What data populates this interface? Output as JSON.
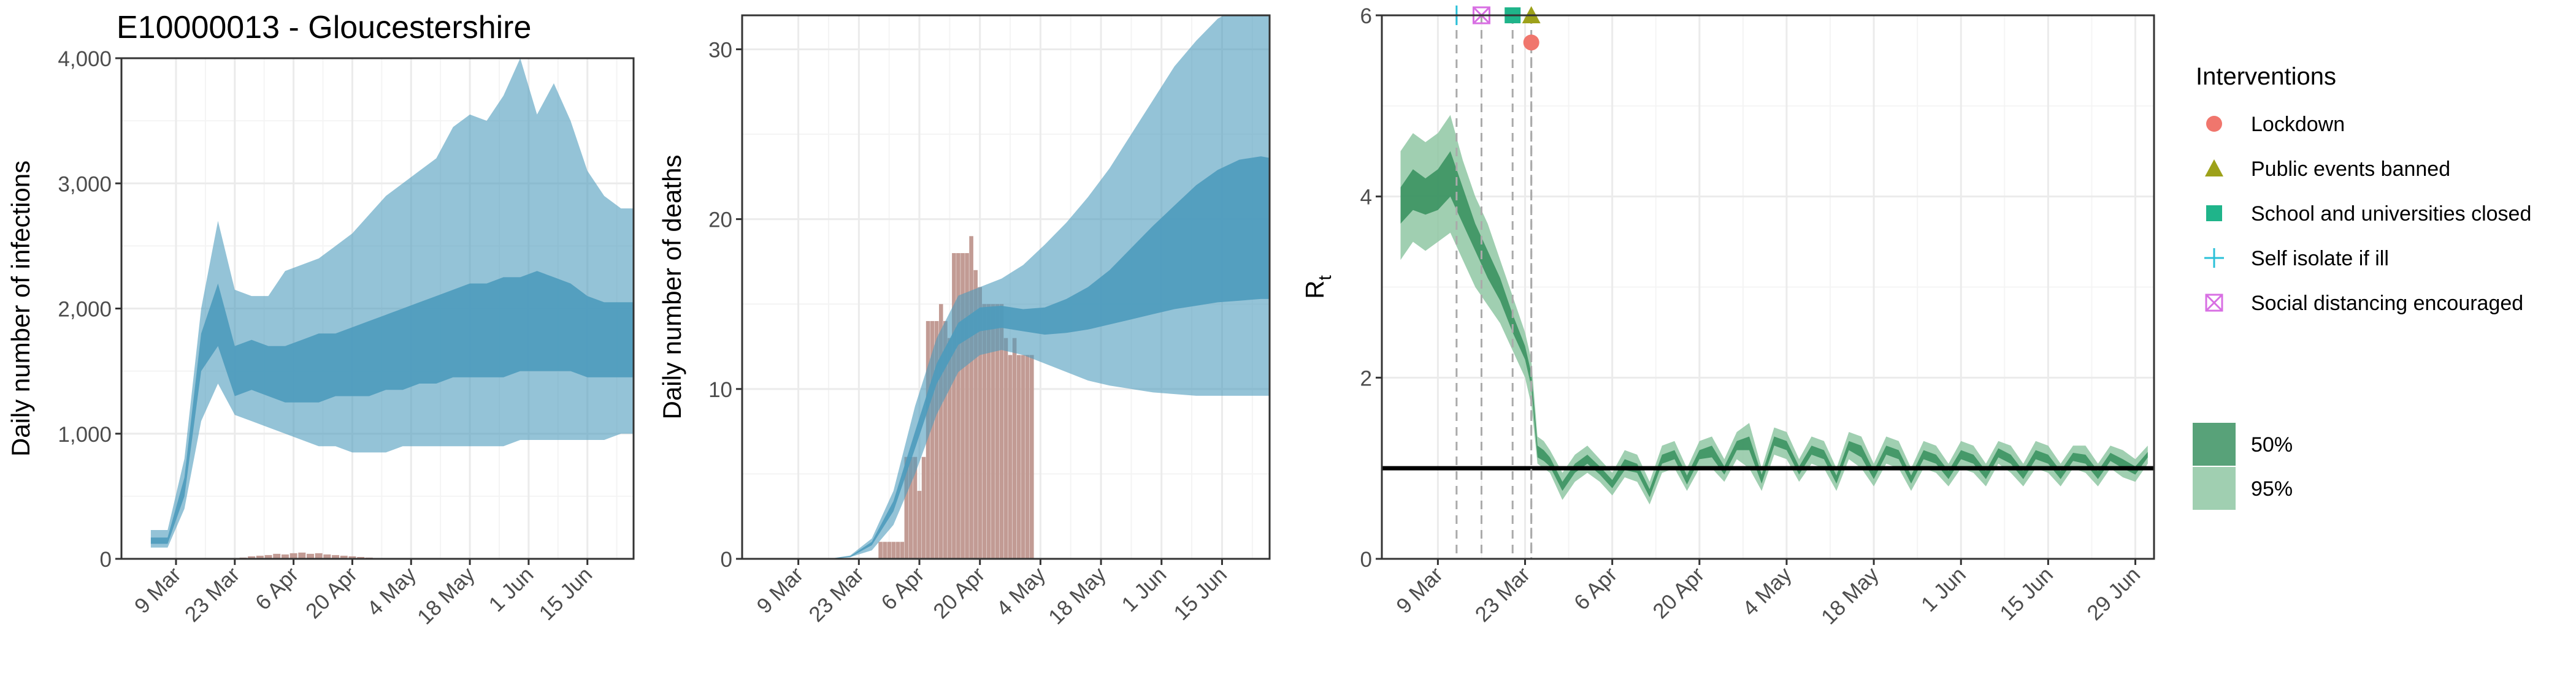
{
  "title": "E10000013 - Gloucestershire",
  "colors": {
    "infection_band": "#4c9bbd",
    "infection_band_opacity": 0.6,
    "death_bar": "#c29b94",
    "rt_50": "#2e8b57",
    "rt_95": "#8fc7a3",
    "lockdown": "#f0766d",
    "public_events": "#9da11a",
    "schools": "#1fb48a",
    "self_isolate": "#2ac0d8",
    "social_distancing": "#d86fe3",
    "grid": "#ebebeb"
  },
  "legend": {
    "title": "Interventions",
    "items": [
      {
        "label": "Lockdown",
        "shape": "circle",
        "color_key": "lockdown"
      },
      {
        "label": "Public events banned",
        "shape": "triangle",
        "color_key": "public_events"
      },
      {
        "label": "School and universities closed",
        "shape": "square",
        "color_key": "schools"
      },
      {
        "label": "Self isolate if ill",
        "shape": "plus",
        "color_key": "self_isolate"
      },
      {
        "label": "Social distancing encouraged",
        "shape": "boxx",
        "color_key": "social_distancing"
      }
    ],
    "ci_items": [
      {
        "label": "50%",
        "color_key": "rt_50"
      },
      {
        "label": "95%",
        "color_key": "rt_95"
      }
    ]
  },
  "chart_data": [
    {
      "type": "area",
      "title": "E10000013 - Gloucestershire",
      "ylabel": "Daily number of infections",
      "xlabel": "",
      "ylim": [
        0,
        4000
      ],
      "yticks": [
        0,
        1000,
        2000,
        3000,
        4000
      ],
      "ytick_labels": [
        "0",
        "1,000",
        "2,000",
        "3,000",
        "4,000"
      ],
      "xlim_day": [
        -5,
        117
      ],
      "xticks_day": [
        8,
        22,
        36,
        50,
        64,
        78,
        92,
        106,
        120
      ],
      "xtick_labels": [
        "9 Mar",
        "23 Mar",
        "6 Apr",
        "20 Apr",
        "4 May",
        "18 May",
        "1 Jun",
        "15 Jun",
        "29 Jun"
      ],
      "start_date": "2020-03-01",
      "series": [
        {
          "name": "95% band",
          "x_day": [
            2,
            6,
            10,
            14,
            18,
            22,
            26,
            30,
            34,
            38,
            42,
            46,
            50,
            54,
            58,
            62,
            66,
            70,
            74,
            78,
            82,
            86,
            90,
            94,
            98,
            102,
            106,
            110,
            114,
            117
          ],
          "low": [
            90,
            90,
            400,
            1100,
            1400,
            1150,
            1100,
            1050,
            1000,
            950,
            900,
            900,
            850,
            850,
            850,
            900,
            900,
            900,
            900,
            900,
            900,
            900,
            950,
            950,
            950,
            950,
            950,
            950,
            1000,
            1000
          ],
          "high": [
            230,
            230,
            800,
            2000,
            2700,
            2150,
            2100,
            2100,
            2300,
            2350,
            2400,
            2500,
            2600,
            2750,
            2900,
            3000,
            3100,
            3200,
            3450,
            3550,
            3500,
            3700,
            4000,
            3550,
            3800,
            3500,
            3100,
            2900,
            2800,
            2800
          ]
        },
        {
          "name": "50% band",
          "x_day": [
            2,
            6,
            10,
            14,
            18,
            22,
            26,
            30,
            34,
            38,
            42,
            46,
            50,
            54,
            58,
            62,
            66,
            70,
            74,
            78,
            82,
            86,
            90,
            94,
            98,
            102,
            106,
            110,
            114,
            117
          ],
          "low": [
            120,
            120,
            500,
            1500,
            1700,
            1300,
            1350,
            1300,
            1250,
            1250,
            1250,
            1300,
            1300,
            1300,
            1350,
            1350,
            1400,
            1400,
            1450,
            1450,
            1450,
            1450,
            1500,
            1500,
            1500,
            1500,
            1450,
            1450,
            1450,
            1450
          ],
          "high": [
            170,
            170,
            650,
            1800,
            2200,
            1700,
            1750,
            1700,
            1700,
            1750,
            1800,
            1800,
            1850,
            1900,
            1950,
            2000,
            2050,
            2100,
            2150,
            2200,
            2200,
            2250,
            2250,
            2300,
            2250,
            2200,
            2100,
            2050,
            2050,
            2050
          ]
        }
      ],
      "observed_cases": {
        "x_day": [
          24,
          26,
          28,
          30,
          32,
          34,
          36,
          38,
          40,
          42,
          44,
          46,
          48,
          50,
          52,
          54
        ],
        "values": [
          10,
          20,
          25,
          30,
          40,
          35,
          45,
          50,
          40,
          45,
          35,
          30,
          25,
          20,
          15,
          10
        ]
      }
    },
    {
      "type": "bar",
      "ylabel": "Daily number of deaths",
      "xlabel": "",
      "ylim": [
        0,
        32
      ],
      "yticks": [
        0,
        10,
        20,
        30
      ],
      "ytick_labels": [
        "0",
        "10",
        "20",
        "30"
      ],
      "xlim_day": [
        -5,
        117
      ],
      "xticks_day": [
        8,
        22,
        36,
        50,
        64,
        78,
        92,
        106,
        120
      ],
      "xtick_labels": [
        "9 Mar",
        "23 Mar",
        "6 Apr",
        "20 Apr",
        "4 May",
        "18 May",
        "1 Jun",
        "15 Jun",
        "29 Jun"
      ],
      "start_date": "2020-03-01",
      "bars": {
        "x_day": [
          27,
          28,
          29,
          30,
          31,
          32,
          33,
          34,
          35,
          36,
          37,
          38,
          39,
          40,
          41,
          42,
          43,
          44,
          45,
          46,
          47,
          48,
          49,
          50,
          51,
          52,
          53,
          54,
          55,
          56,
          57,
          58,
          59,
          60,
          61,
          62
        ],
        "values": [
          1,
          1,
          1,
          1,
          1,
          1,
          6,
          6,
          6,
          4,
          6,
          14,
          14,
          14,
          15,
          14,
          13,
          18,
          18,
          18,
          18,
          19,
          17,
          16,
          15,
          15,
          15,
          15,
          15,
          13,
          12,
          13,
          12,
          12,
          12,
          12
        ]
      },
      "series": [
        {
          "name": "95% band",
          "x_day": [
            -5,
            5,
            10,
            15,
            20,
            25,
            30,
            35,
            40,
            45,
            50,
            55,
            60,
            65,
            70,
            75,
            80,
            85,
            90,
            95,
            100,
            105,
            110,
            115,
            117
          ],
          "low": [
            0,
            0,
            0,
            0,
            0.1,
            0.5,
            2,
            5,
            8.5,
            11,
            12,
            12.3,
            12.0,
            11.5,
            11.0,
            10.5,
            10.2,
            10.0,
            9.8,
            9.7,
            9.6,
            9.6,
            9.6,
            9.6,
            9.6
          ],
          "high": [
            0,
            0,
            0,
            0,
            0.2,
            1.2,
            4,
            9,
            13,
            15.5,
            16,
            16.5,
            17.3,
            18.5,
            19.8,
            21.3,
            23,
            25,
            27,
            29,
            30.5,
            31.8,
            32.5,
            32.8,
            32.5
          ]
        },
        {
          "name": "50% band",
          "x_day": [
            -5,
            5,
            10,
            15,
            20,
            25,
            30,
            35,
            40,
            45,
            50,
            55,
            60,
            65,
            70,
            75,
            80,
            85,
            90,
            95,
            100,
            105,
            110,
            115,
            117
          ],
          "low": [
            0,
            0,
            0,
            0,
            0.1,
            0.8,
            2.8,
            6.5,
            10.3,
            12.6,
            13.4,
            13.6,
            13.4,
            13.2,
            13.3,
            13.5,
            13.8,
            14.1,
            14.4,
            14.7,
            14.9,
            15.1,
            15.2,
            15.3,
            15.3
          ],
          "high": [
            0,
            0,
            0,
            0,
            0.15,
            1.0,
            3.4,
            7.5,
            11.5,
            13.9,
            14.8,
            14.9,
            14.7,
            14.8,
            15.3,
            16.0,
            17.0,
            18.3,
            19.6,
            20.8,
            22.0,
            22.9,
            23.5,
            23.7,
            23.6
          ]
        }
      ]
    },
    {
      "type": "area",
      "ylabel": "R",
      "ylabel_subscript": "t",
      "xlabel": "",
      "ylim": [
        0,
        6
      ],
      "yticks": [
        0,
        2,
        4,
        6
      ],
      "ytick_labels": [
        "0",
        "2",
        "4",
        "6"
      ],
      "xlim_day": [
        -1,
        123
      ],
      "xticks_day": [
        8,
        22,
        36,
        50,
        64,
        78,
        92,
        106,
        120
      ],
      "xtick_labels": [
        "9 Mar",
        "23 Mar",
        "6 Apr",
        "20 Apr",
        "4 May",
        "18 May",
        "1 Jun",
        "15 Jun",
        "29 Jun"
      ],
      "start_date": "2020-03-01",
      "reference_line": 1,
      "interventions": [
        {
          "label": "Self isolate if ill",
          "x_day": 11,
          "y": 6.0,
          "color_key": "self_isolate",
          "shape": "plus"
        },
        {
          "label": "Social distancing encouraged",
          "x_day": 15,
          "y": 6.0,
          "color_key": "social_distancing",
          "shape": "boxx"
        },
        {
          "label": "School and universities closed",
          "x_day": 20,
          "y": 6.0,
          "color_key": "schools",
          "shape": "square"
        },
        {
          "label": "Public events banned",
          "x_day": 23,
          "y": 6.0,
          "color_key": "public_events",
          "shape": "triangle"
        },
        {
          "label": "Lockdown",
          "x_day": 23,
          "y": 5.7,
          "color_key": "lockdown",
          "shape": "circle"
        }
      ],
      "series": [
        {
          "name": "95%",
          "x_day": [
            2,
            4,
            6,
            8,
            10,
            12,
            14,
            16,
            18,
            20,
            22,
            23,
            24,
            25,
            26,
            28,
            30,
            32,
            34,
            36,
            38,
            40,
            42,
            44,
            46,
            48,
            50,
            52,
            54,
            56,
            58,
            60,
            62,
            64,
            66,
            68,
            70,
            72,
            74,
            76,
            78,
            80,
            82,
            84,
            86,
            88,
            90,
            92,
            94,
            96,
            98,
            100,
            102,
            104,
            106,
            108,
            110,
            112,
            114,
            116,
            118,
            120,
            122
          ],
          "low": [
            3.3,
            3.5,
            3.4,
            3.5,
            3.6,
            3.3,
            3.0,
            2.8,
            2.6,
            2.3,
            2.0,
            1.7,
            1.05,
            1.0,
            0.95,
            0.65,
            0.85,
            0.95,
            0.85,
            0.7,
            0.9,
            0.85,
            0.6,
            0.95,
            1.0,
            0.75,
            1.0,
            1.0,
            0.85,
            1.1,
            1.0,
            0.75,
            1.15,
            1.1,
            0.85,
            1.05,
            1.0,
            0.75,
            1.1,
            1.0,
            0.8,
            1.05,
            1.0,
            0.75,
            1.0,
            0.95,
            0.8,
            1.0,
            0.95,
            0.8,
            1.05,
            0.95,
            0.8,
            1.0,
            0.95,
            0.8,
            1.0,
            0.95,
            0.8,
            1.0,
            0.9,
            0.85,
            1.05
          ],
          "high": [
            4.5,
            4.7,
            4.6,
            4.7,
            4.9,
            4.4,
            4.0,
            3.7,
            3.3,
            2.9,
            2.5,
            2.2,
            1.35,
            1.3,
            1.2,
            0.95,
            1.15,
            1.25,
            1.1,
            0.95,
            1.2,
            1.15,
            0.85,
            1.25,
            1.3,
            1.0,
            1.3,
            1.35,
            1.1,
            1.4,
            1.5,
            1.0,
            1.45,
            1.4,
            1.1,
            1.35,
            1.3,
            1.0,
            1.4,
            1.35,
            1.05,
            1.35,
            1.3,
            1.0,
            1.3,
            1.25,
            1.05,
            1.3,
            1.25,
            1.05,
            1.3,
            1.25,
            1.05,
            1.3,
            1.25,
            1.05,
            1.25,
            1.25,
            1.05,
            1.25,
            1.2,
            1.1,
            1.25
          ]
        },
        {
          "name": "50%",
          "x_day": [
            2,
            4,
            6,
            8,
            10,
            12,
            14,
            16,
            18,
            20,
            22,
            23,
            24,
            25,
            26,
            28,
            30,
            32,
            34,
            36,
            38,
            40,
            42,
            44,
            46,
            48,
            50,
            52,
            54,
            56,
            58,
            60,
            62,
            64,
            66,
            68,
            70,
            72,
            74,
            76,
            78,
            80,
            82,
            84,
            86,
            88,
            90,
            92,
            94,
            96,
            98,
            100,
            102,
            104,
            106,
            108,
            110,
            112,
            114,
            116,
            118,
            120,
            122
          ],
          "low": [
            3.7,
            3.85,
            3.8,
            3.85,
            4.0,
            3.7,
            3.4,
            3.1,
            2.85,
            2.5,
            2.2,
            1.9,
            1.12,
            1.08,
            1.02,
            0.75,
            0.95,
            1.05,
            0.93,
            0.78,
            0.98,
            0.95,
            0.68,
            1.05,
            1.1,
            0.82,
            1.1,
            1.12,
            0.93,
            1.2,
            1.2,
            0.83,
            1.25,
            1.2,
            0.93,
            1.15,
            1.1,
            0.83,
            1.2,
            1.12,
            0.88,
            1.15,
            1.1,
            0.83,
            1.1,
            1.05,
            0.88,
            1.1,
            1.05,
            0.88,
            1.12,
            1.05,
            0.88,
            1.1,
            1.05,
            0.88,
            1.08,
            1.05,
            0.88,
            1.08,
            1.0,
            0.93,
            1.12
          ],
          "high": [
            4.1,
            4.3,
            4.2,
            4.3,
            4.5,
            4.1,
            3.7,
            3.4,
            3.1,
            2.7,
            2.35,
            2.05,
            1.25,
            1.2,
            1.12,
            0.85,
            1.05,
            1.15,
            1.02,
            0.87,
            1.1,
            1.05,
            0.77,
            1.15,
            1.2,
            0.92,
            1.2,
            1.25,
            1.02,
            1.3,
            1.35,
            0.93,
            1.35,
            1.3,
            1.02,
            1.25,
            1.2,
            0.92,
            1.3,
            1.25,
            0.97,
            1.25,
            1.2,
            0.92,
            1.2,
            1.15,
            0.97,
            1.2,
            1.15,
            0.97,
            1.22,
            1.15,
            0.97,
            1.2,
            1.15,
            0.97,
            1.17,
            1.15,
            0.97,
            1.17,
            1.1,
            1.02,
            1.18
          ]
        }
      ]
    }
  ]
}
